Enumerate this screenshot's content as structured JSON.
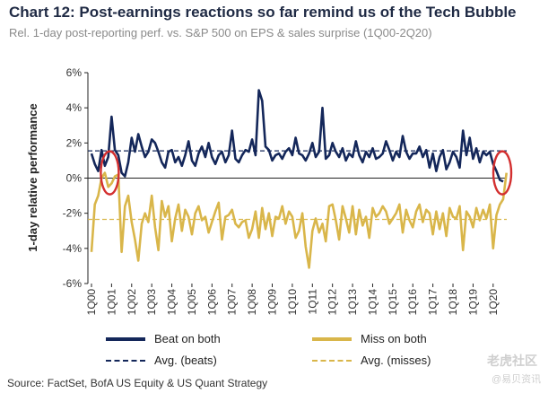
{
  "header": {
    "title": "Chart 12: Post-earnings reactions so far remind us of the Tech Bubble",
    "subtitle": "Rel. 1-day post-reporting perf. vs. S&P 500 on EPS & sales surprise (1Q00-2Q20)"
  },
  "source": "Source: FactSet, BofA US Equity & US Quant Strategy",
  "watermark": {
    "main": "老虎社区",
    "sub": "@易贝资讯"
  },
  "chart_data": {
    "type": "line",
    "ylabel": "1-day relative performance",
    "ylim": [
      -6,
      6
    ],
    "yticks": [
      6,
      4,
      2,
      0,
      -2,
      -4,
      -6
    ],
    "ytick_labels": [
      "6%",
      "4%",
      "2%",
      "0%",
      "-2%",
      "-4%",
      "-6%"
    ],
    "x_labels": [
      "1Q00",
      "1Q01",
      "1Q02",
      "1Q03",
      "1Q04",
      "1Q05",
      "1Q06",
      "1Q07",
      "1Q08",
      "1Q09",
      "1Q10",
      "1Q11",
      "1Q12",
      "1Q13",
      "1Q14",
      "1Q15",
      "1Q16",
      "1Q17",
      "1Q18",
      "1Q19",
      "1Q20"
    ],
    "series": [
      {
        "name": "Beat on both",
        "color": "#14275a",
        "values": [
          1.4,
          0.8,
          0.4,
          1.6,
          0.7,
          1.2,
          3.5,
          1.6,
          1.3,
          0.3,
          0.1,
          0.9,
          2.3,
          1.5,
          2.5,
          1.8,
          1.2,
          1.5,
          2.2,
          2.0,
          1.5,
          0.9,
          0.6,
          1.5,
          1.6,
          0.9,
          1.2,
          0.7,
          1.3,
          2.1,
          1.0,
          0.7,
          1.4,
          1.8,
          1.2,
          2.0,
          1.2,
          0.8,
          1.3,
          1.5,
          0.9,
          1.3,
          2.7,
          1.1,
          0.9,
          1.3,
          1.6,
          1.5,
          2.2,
          1.3,
          5.0,
          4.4,
          1.8,
          1.6,
          1.0,
          1.3,
          1.4,
          1.1,
          1.5,
          1.7,
          1.3,
          2.3,
          1.4,
          1.3,
          1.0,
          1.4,
          2.0,
          1.2,
          1.5,
          4.0,
          1.1,
          1.3,
          2.0,
          1.5,
          1.2,
          1.7,
          1.0,
          1.4,
          1.2,
          2.1,
          1.3,
          0.9,
          1.5,
          1.2,
          1.7,
          1.1,
          1.2,
          1.4,
          2.1,
          1.6,
          1.0,
          1.5,
          1.2,
          2.4,
          1.5,
          1.1,
          1.4,
          1.4,
          1.8,
          1.2,
          1.6,
          0.6,
          1.4,
          0.4,
          1.2,
          1.6,
          0.5,
          0.9,
          1.5,
          1.2,
          0.6,
          2.7,
          1.3,
          2.3,
          1.1,
          1.7,
          0.9,
          1.5,
          1.3,
          1.5,
          0.8,
          0.4,
          -0.1,
          -0.2
        ],
        "average": 1.55,
        "average_label": "Avg. (beats)"
      },
      {
        "name": "Miss on both",
        "color": "#d9b64a",
        "values": [
          -4.2,
          -1.5,
          -1.0,
          0.0,
          0.3,
          -0.5,
          -0.3,
          0.1,
          0.2,
          -4.2,
          -1.6,
          -1.0,
          -2.5,
          -3.5,
          -4.7,
          -2.6,
          -2.0,
          -2.5,
          -1.0,
          -2.8,
          -4.1,
          -1.3,
          -2.2,
          -1.6,
          -3.6,
          -2.3,
          -1.5,
          -3.0,
          -1.8,
          -2.2,
          -3.2,
          -2.0,
          -1.6,
          -2.4,
          -2.2,
          -3.1,
          -2.5,
          -1.9,
          -1.4,
          -3.5,
          -2.2,
          -2.1,
          -1.8,
          -2.6,
          -2.8,
          -2.5,
          -2.4,
          -3.4,
          -2.9,
          -1.9,
          -3.4,
          -1.7,
          -2.9,
          -2.0,
          -3.3,
          -2.2,
          -2.3,
          -1.6,
          -2.6,
          -1.9,
          -2.2,
          -3.4,
          -3.0,
          -2.0,
          -3.9,
          -5.1,
          -3.0,
          -2.3,
          -3.1,
          -2.6,
          -3.6,
          -1.6,
          -1.5,
          -2.4,
          -3.5,
          -1.6,
          -2.3,
          -3.1,
          -1.6,
          -3.2,
          -1.8,
          -2.7,
          -2.2,
          -3.4,
          -1.7,
          -2.2,
          -2.0,
          -1.6,
          -1.9,
          -2.6,
          -2.3,
          -2.0,
          -1.5,
          -3.1,
          -1.8,
          -2.4,
          -2.8,
          -1.9,
          -1.5,
          -2.5,
          -1.8,
          -2.0,
          -3.2,
          -1.9,
          -2.9,
          -2.0,
          -3.3,
          -1.7,
          -2.2,
          -2.3,
          -1.6,
          -4.1,
          -1.9,
          -2.2,
          -2.8,
          -1.7,
          -2.4,
          -1.8,
          -2.3,
          -1.5,
          -4.0,
          -2.1,
          -1.5,
          -1.2,
          0.3
        ],
        "average": -2.35,
        "average_label": "Avg. (misses)"
      }
    ],
    "annotations": [
      {
        "type": "ellipse",
        "color": "#d32f2f",
        "near": "1Q01"
      },
      {
        "type": "ellipse",
        "color": "#d32f2f",
        "near": "2Q20"
      }
    ],
    "grid": false,
    "legend_position": "bottom"
  }
}
